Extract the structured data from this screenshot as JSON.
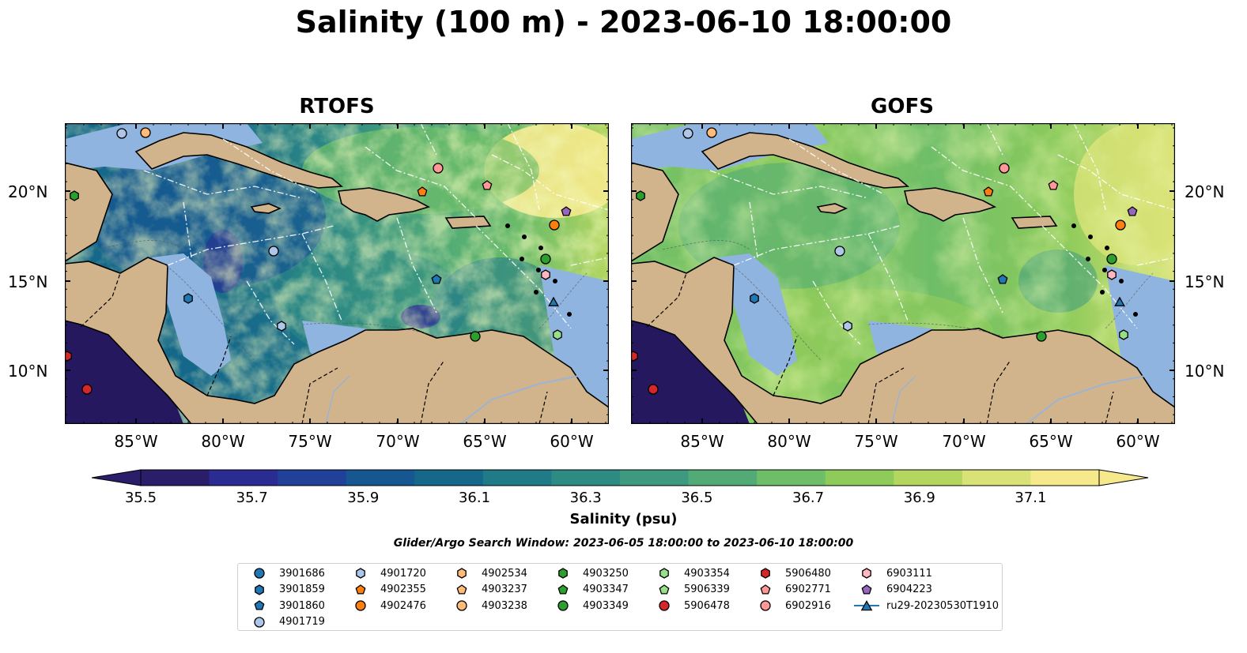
{
  "title": "Salinity (100 m) - 2023-06-10 18:00:00",
  "panels": [
    {
      "title": "RTOFS",
      "ramp": "rtofs"
    },
    {
      "title": "GOFS",
      "ramp": "gofs"
    }
  ],
  "axes": {
    "lon_ticks": [
      "85°W",
      "80°W",
      "75°W",
      "70°W",
      "65°W",
      "60°W"
    ],
    "lat_ticks": [
      "20°N",
      "15°N",
      "10°N"
    ]
  },
  "colorbar": {
    "label": "Salinity (psu)",
    "ticks": [
      "35.5",
      "35.7",
      "35.9",
      "36.1",
      "36.3",
      "36.5",
      "36.7",
      "36.9",
      "37.1"
    ],
    "colors": [
      "#2a1e6b",
      "#2a2c92",
      "#21409a",
      "#175791",
      "#15688a",
      "#217a88",
      "#2e8b84",
      "#3d9a80",
      "#52ab76",
      "#6ebd68",
      "#8ecb5b",
      "#b3d65f",
      "#d9e277",
      "#f6e98c"
    ],
    "colormap": "haline"
  },
  "search_window": "Glider/Argo Search Window: 2023-06-05 18:00:00 to 2023-06-10 18:00:00",
  "legend": [
    {
      "label": "3901686",
      "marker": "circle",
      "color": "#1f77b4"
    },
    {
      "label": "3901859",
      "marker": "hexagon",
      "color": "#1f77b4"
    },
    {
      "label": "3901860",
      "marker": "pentagon",
      "color": "#1f77b4"
    },
    {
      "label": "4901719",
      "marker": "circle",
      "color": "#aec7e8"
    },
    {
      "label": "4901720",
      "marker": "hexagon",
      "color": "#aec7e8"
    },
    {
      "label": "4902355",
      "marker": "pentagon",
      "color": "#ff7f0e"
    },
    {
      "label": "4902476",
      "marker": "circle",
      "color": "#ff7f0e"
    },
    {
      "label": "4902534",
      "marker": "hexagon",
      "color": "#ffbb78"
    },
    {
      "label": "4903237",
      "marker": "pentagon",
      "color": "#ffbb78"
    },
    {
      "label": "4903238",
      "marker": "circle",
      "color": "#ffbb78"
    },
    {
      "label": "4903250",
      "marker": "hexagon",
      "color": "#2ca02c"
    },
    {
      "label": "4903347",
      "marker": "pentagon",
      "color": "#2ca02c"
    },
    {
      "label": "4903349",
      "marker": "circle",
      "color": "#2ca02c"
    },
    {
      "label": "4903354",
      "marker": "hexagon",
      "color": "#98df8a"
    },
    {
      "label": "5906339",
      "marker": "pentagon",
      "color": "#98df8a"
    },
    {
      "label": "5906478",
      "marker": "circle",
      "color": "#d62728"
    },
    {
      "label": "5906480",
      "marker": "hexagon",
      "color": "#d62728"
    },
    {
      "label": "6902771",
      "marker": "pentagon",
      "color": "#ff9896"
    },
    {
      "label": "6902916",
      "marker": "circle",
      "color": "#ff9896"
    },
    {
      "label": "6903111",
      "marker": "hexagon",
      "color": "#ffb6c1"
    },
    {
      "label": "6904223",
      "marker": "pentagon",
      "color": "#9467bd"
    },
    {
      "label": "ru29-20230530T1910",
      "marker": "triangle-line",
      "color": "#1f77b4"
    }
  ],
  "map_style": {
    "land": "#d2b48c",
    "shelf": "#90b4e0",
    "deep_pacific": "#26185e"
  }
}
